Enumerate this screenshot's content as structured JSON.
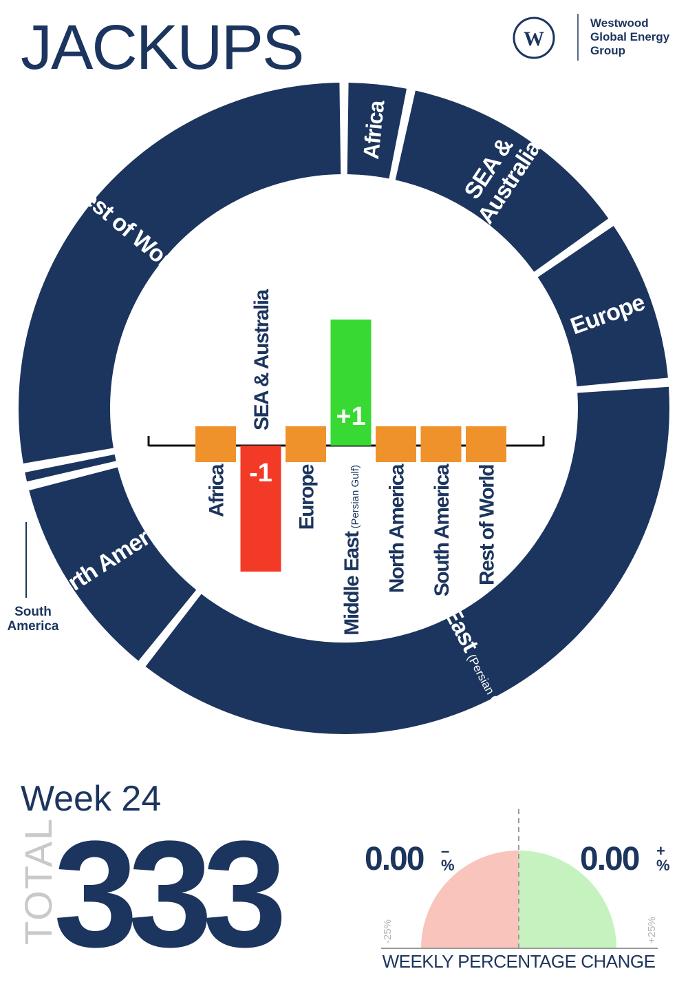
{
  "title": "JACKUPS",
  "logo": {
    "icon_letter": "W",
    "lines": [
      "Westwood",
      "Global Energy",
      "Group"
    ]
  },
  "colors": {
    "navy": "#1c355e",
    "orange": "#f0922b",
    "red": "#f23a27",
    "green": "#37d932",
    "gauge_neg": "#f9c4bc",
    "gauge_pos": "#c6f2c0"
  },
  "chart_data": [
    {
      "type": "donut",
      "segments": [
        {
          "name": "Africa",
          "value": 11
        },
        {
          "name": "SEA & Australia",
          "value": 40,
          "label_lines": [
            "SEA &",
            "Australia"
          ]
        },
        {
          "name": "Europe",
          "value": 28
        },
        {
          "name": "Middle East",
          "label_sub": "(Persian Gulf & Red Sea)",
          "value": 123
        },
        {
          "name": "North America",
          "value": 35
        },
        {
          "name": "South America",
          "value": 3,
          "label_lines": [
            "South",
            "America"
          ]
        },
        {
          "name": "Rest of World",
          "value": 93
        }
      ]
    },
    {
      "type": "bar",
      "categories": [
        {
          "name": "Africa"
        },
        {
          "name": "SEA & Australia"
        },
        {
          "name": "Europe"
        },
        {
          "name": "Middle East",
          "sub": "(Persian Gulf)"
        },
        {
          "name": "North America"
        },
        {
          "name": "South America"
        },
        {
          "name": "Rest of World"
        }
      ],
      "values": [
        0,
        -1,
        0,
        1,
        0,
        0,
        0
      ],
      "value_labels": [
        "",
        "-1",
        "",
        "+1",
        "",
        "",
        ""
      ]
    }
  ],
  "summary": {
    "week_label": "Week 24",
    "total_label": "TOTAL",
    "total_value": "333"
  },
  "gauge": {
    "negative_value": "0.00",
    "negative_sign": "–",
    "positive_value": "0.00",
    "positive_sign": "+",
    "percent_symbol": "%",
    "negative_change": 0,
    "positive_change": 0,
    "min_label": "-25%",
    "max_label": "+25%",
    "caption": "WEEKLY PERCENTAGE CHANGE"
  }
}
